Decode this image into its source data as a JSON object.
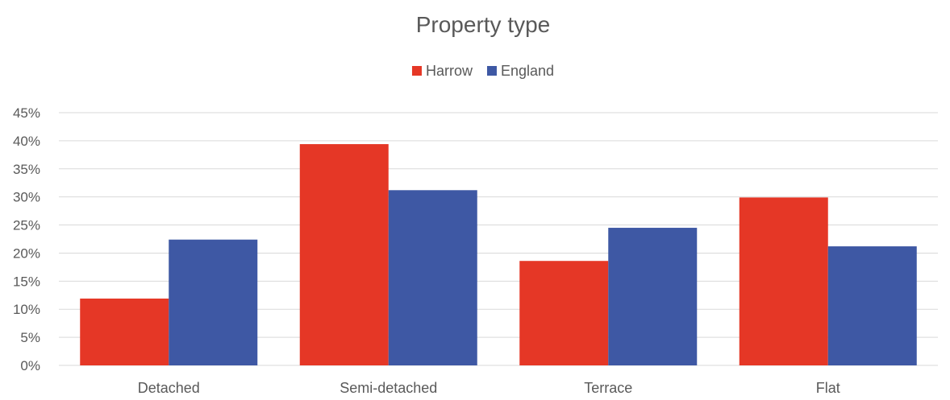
{
  "chart_data": {
    "type": "bar",
    "title": "Property type",
    "categories": [
      "Detached",
      "Semi-detached",
      "Terrace",
      "Flat"
    ],
    "series": [
      {
        "name": "Harrow",
        "values": [
          0.119,
          0.394,
          0.186,
          0.299
        ],
        "color": "#e53726"
      },
      {
        "name": "England",
        "values": [
          0.224,
          0.312,
          0.245,
          0.212
        ],
        "color": "#3e58a4"
      }
    ],
    "ylim": [
      0,
      0.45
    ],
    "yticks": [
      {
        "value": 0,
        "label": "0%"
      },
      {
        "value": 0.05,
        "label": "5%"
      },
      {
        "value": 0.1,
        "label": "10%"
      },
      {
        "value": 0.15,
        "label": "15%"
      },
      {
        "value": 0.2,
        "label": "20%"
      },
      {
        "value": 0.25,
        "label": "25%"
      },
      {
        "value": 0.3,
        "label": "30%"
      },
      {
        "value": 0.35,
        "label": "35%"
      },
      {
        "value": 0.4,
        "label": "40%"
      },
      {
        "value": 0.45,
        "label": "45%"
      }
    ],
    "grid": true,
    "legend_position": "top-center"
  }
}
